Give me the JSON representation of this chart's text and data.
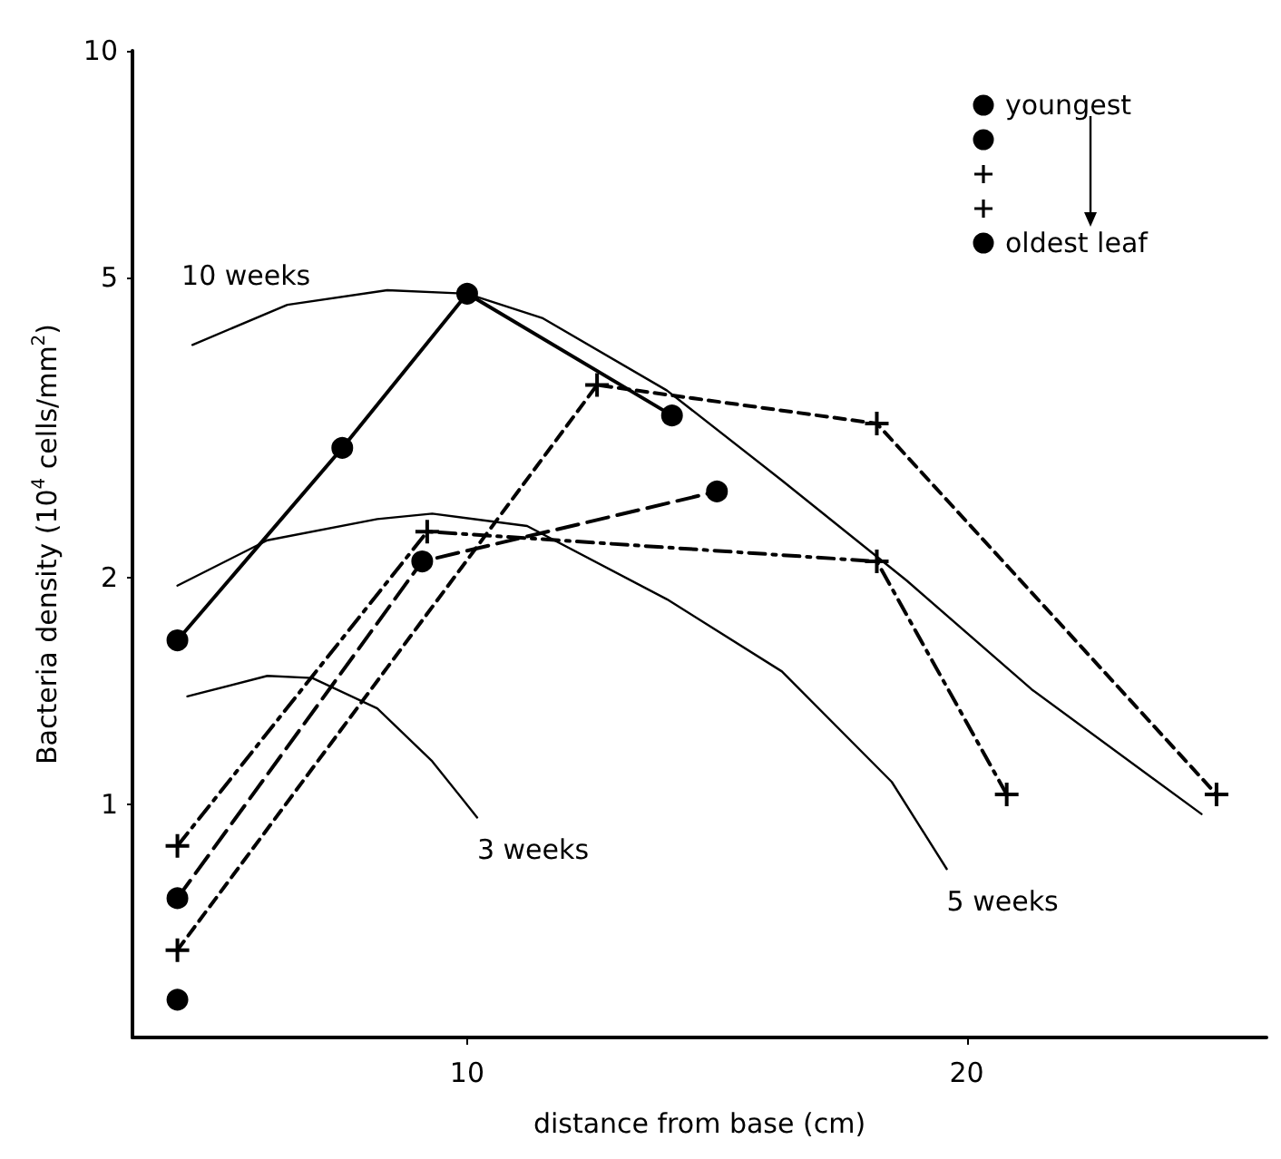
{
  "chart_data": {
    "type": "line",
    "xlabel": "distance from base (cm)",
    "ylabel": "Bacteria density (10$^{4}$ cells/mm$^{2}$)",
    "xlim": [
      3.3,
      26
    ],
    "xticks": [
      10,
      20
    ],
    "ylim": [
      0.49,
      10
    ],
    "yticks": [
      1,
      2,
      5,
      10
    ],
    "log": "y",
    "grid": false,
    "legend": "top right",
    "series": [
      {
        "name": "youngest",
        "color": "#000000",
        "marker": "circle",
        "line_style": "none",
        "x": [
          4.2
        ],
        "values": [
          0.55
        ]
      },
      {
        "color": "#000000",
        "marker": "circle",
        "line_style": "long-dashed",
        "x": [
          4.2,
          9.1,
          15.0
        ],
        "values": [
          0.75,
          2.1,
          2.6
        ]
      },
      {
        "color": "#000000",
        "marker": "cross",
        "line_style": "dash-dot",
        "x": [
          4.2,
          9.2,
          18.2,
          20.8
        ],
        "values": [
          0.88,
          2.3,
          2.1,
          1.03
        ]
      },
      {
        "color": "#000000",
        "marker": "cross",
        "line_style": "dashed",
        "x": [
          4.2,
          12.6,
          18.2,
          25.0
        ],
        "values": [
          0.64,
          3.6,
          3.2,
          1.03
        ]
      },
      {
        "name": "oldest leaf",
        "color": "#000000",
        "marker": "circle",
        "line_style": "solid",
        "x": [
          4.2,
          7.5,
          10.0,
          14.1
        ],
        "values": [
          1.65,
          2.97,
          4.76,
          3.28
        ]
      },
      {
        "color": "#000000",
        "marker": "none",
        "line_style": "solid",
        "x": [
          4.5,
          6.4,
          8.4,
          10.0,
          11.5,
          14.0,
          16.3,
          18.8,
          21.3,
          24.7
        ],
        "values": [
          4.07,
          4.6,
          4.81,
          4.76,
          4.42,
          3.54,
          2.69,
          1.98,
          1.42,
          0.97
        ]
      },
      {
        "color": "#000000",
        "marker": "none",
        "line_style": "solid",
        "x": [
          4.2,
          6.0,
          8.2,
          9.3,
          11.2,
          14.0,
          16.3,
          18.5,
          19.6
        ],
        "values": [
          1.95,
          2.24,
          2.39,
          2.43,
          2.34,
          1.87,
          1.5,
          1.07,
          0.82
        ]
      },
      {
        "color": "#000000",
        "marker": "none",
        "line_style": "solid",
        "x": [
          4.4,
          6.0,
          6.9,
          8.2,
          9.3,
          10.2
        ],
        "values": [
          1.39,
          1.48,
          1.47,
          1.34,
          1.14,
          0.96
        ]
      }
    ],
    "annotations": [
      {
        "text": "10 weeks",
        "x": 4.5,
        "y": 4.07
      },
      {
        "text": "3 weeks",
        "x": 10.2,
        "y": 0.96
      },
      {
        "text": "5 weeks",
        "x": 19.6,
        "y": 0.82
      }
    ]
  }
}
